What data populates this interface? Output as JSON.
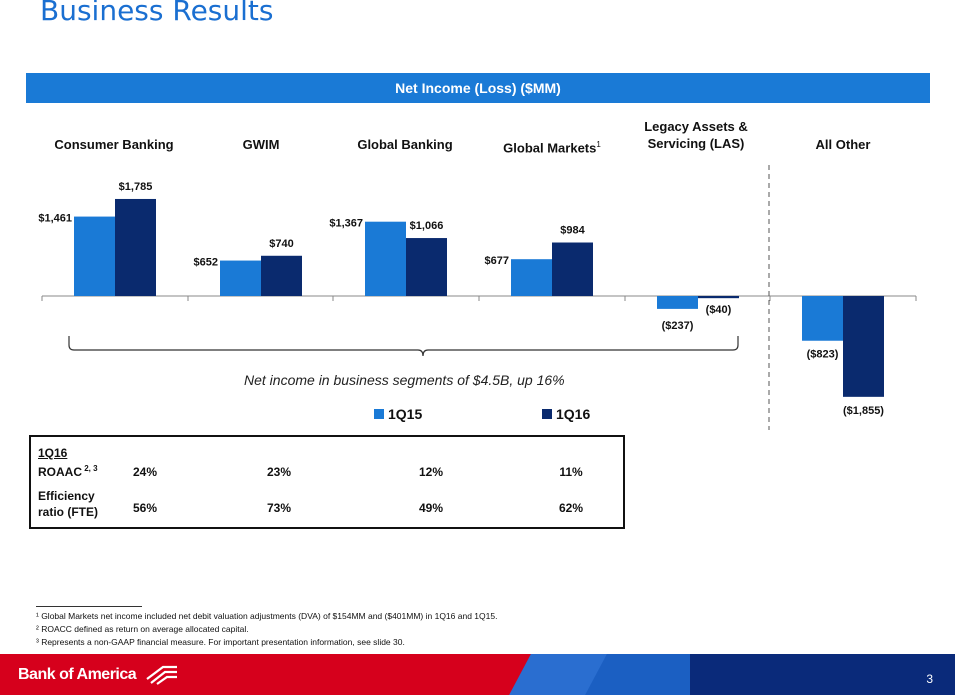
{
  "title": "Business Results",
  "banner": "Net Income (Loss) ($MM)",
  "segments": [
    {
      "name": "Consumer Banking",
      "sup": ""
    },
    {
      "name": "GWIM",
      "sup": ""
    },
    {
      "name": "Global Banking",
      "sup": ""
    },
    {
      "name": "Global Markets",
      "sup": "1"
    },
    {
      "name": "Legacy Assets & Servicing (LAS)",
      "sup": ""
    },
    {
      "name": "All Other",
      "sup": ""
    }
  ],
  "chart_data": {
    "type": "bar",
    "title": "Net Income (Loss) ($MM)",
    "categories": [
      "Consumer Banking",
      "GWIM",
      "Global Banking",
      "Global Markets",
      "Legacy Assets & Servicing (LAS)",
      "All Other"
    ],
    "series": [
      {
        "name": "1Q15",
        "color": "#1a7ad6",
        "values": [
          1461,
          652,
          1367,
          677,
          -237,
          -823
        ],
        "labels": [
          "$1,461",
          "$652",
          "$1,367",
          "$677",
          "($237)",
          "($823)"
        ]
      },
      {
        "name": "1Q16",
        "color": "#0a2a6e",
        "values": [
          1785,
          740,
          1066,
          984,
          -40,
          -1855
        ],
        "labels": [
          "$1,785",
          "$740",
          "$1,066",
          "$984",
          "($40)",
          "($1,855)"
        ]
      }
    ]
  },
  "note": "Net income in business segments of $4.5B, up 16%",
  "legend": [
    {
      "label": "1Q15",
      "color": "#1a7ad6"
    },
    {
      "label": "1Q16",
      "color": "#0a2a6e"
    }
  ],
  "metrics": {
    "period": "1Q16",
    "roaac_label": "ROAAC",
    "roaac_sup": "2, 3",
    "eff_label_1": "Efficiency",
    "eff_label_2": "ratio (FTE)",
    "roaac": [
      "24%",
      "23%",
      "12%",
      "11%"
    ],
    "efficiency": [
      "56%",
      "73%",
      "49%",
      "62%"
    ]
  },
  "footnotes": [
    "¹ Global Markets net income included net debit valuation adjustments (DVA) of $154MM and ($401MM) in 1Q16 and 1Q15.",
    "² ROACC defined as return on average allocated capital.",
    "³ Represents a non-GAAP financial measure. For important presentation information, see slide 30."
  ],
  "footer": {
    "brand": "Bank of America",
    "page": "3"
  }
}
